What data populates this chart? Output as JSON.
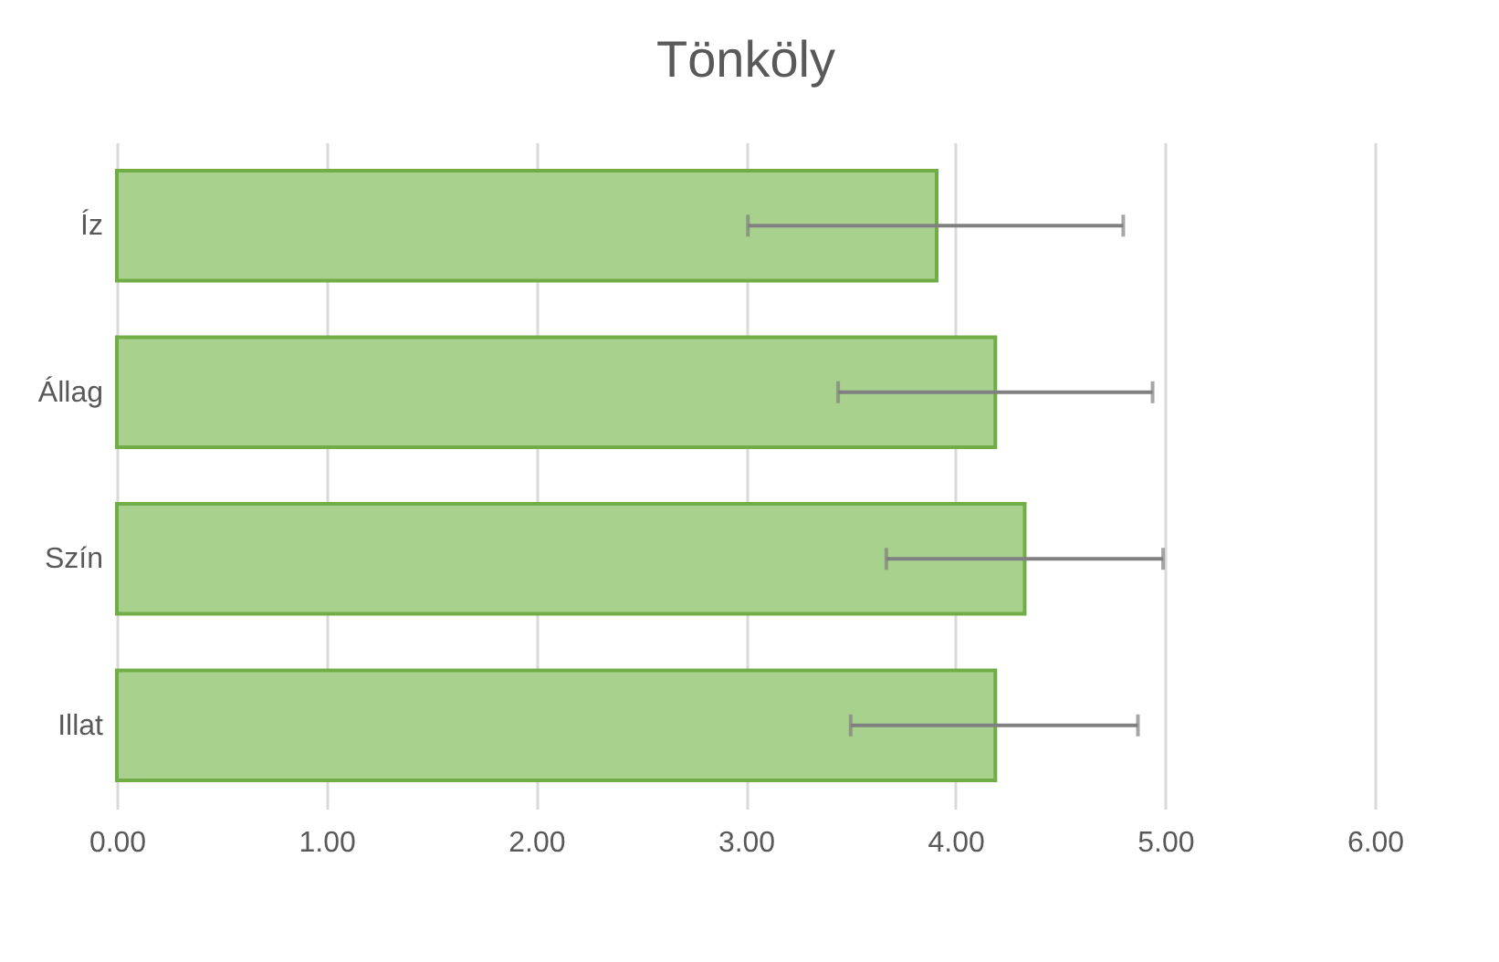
{
  "chart_data": {
    "type": "bar",
    "orientation": "horizontal",
    "title": "Tönköly",
    "categories": [
      "Íz",
      "Állag",
      "Szín",
      "Illat"
    ],
    "series": [
      {
        "color": "#a9d18e",
        "values": [
          3.91,
          4.19,
          4.33,
          4.19
        ],
        "errors": [
          [
            3.01,
            4.8
          ],
          [
            3.44,
            4.94
          ],
          [
            3.67,
            4.99
          ],
          [
            3.5,
            4.87
          ]
        ]
      }
    ],
    "xlim": [
      0,
      6
    ],
    "xticks": [
      {
        "value": 0,
        "label": "0.00"
      },
      {
        "value": 1,
        "label": "1.00"
      },
      {
        "value": 2,
        "label": "2.00"
      },
      {
        "value": 3,
        "label": "3.00"
      },
      {
        "value": 4,
        "label": "4.00"
      },
      {
        "value": 5,
        "label": "5.00"
      },
      {
        "value": 6,
        "label": "6.00"
      }
    ],
    "grid": "x",
    "legend": false
  }
}
